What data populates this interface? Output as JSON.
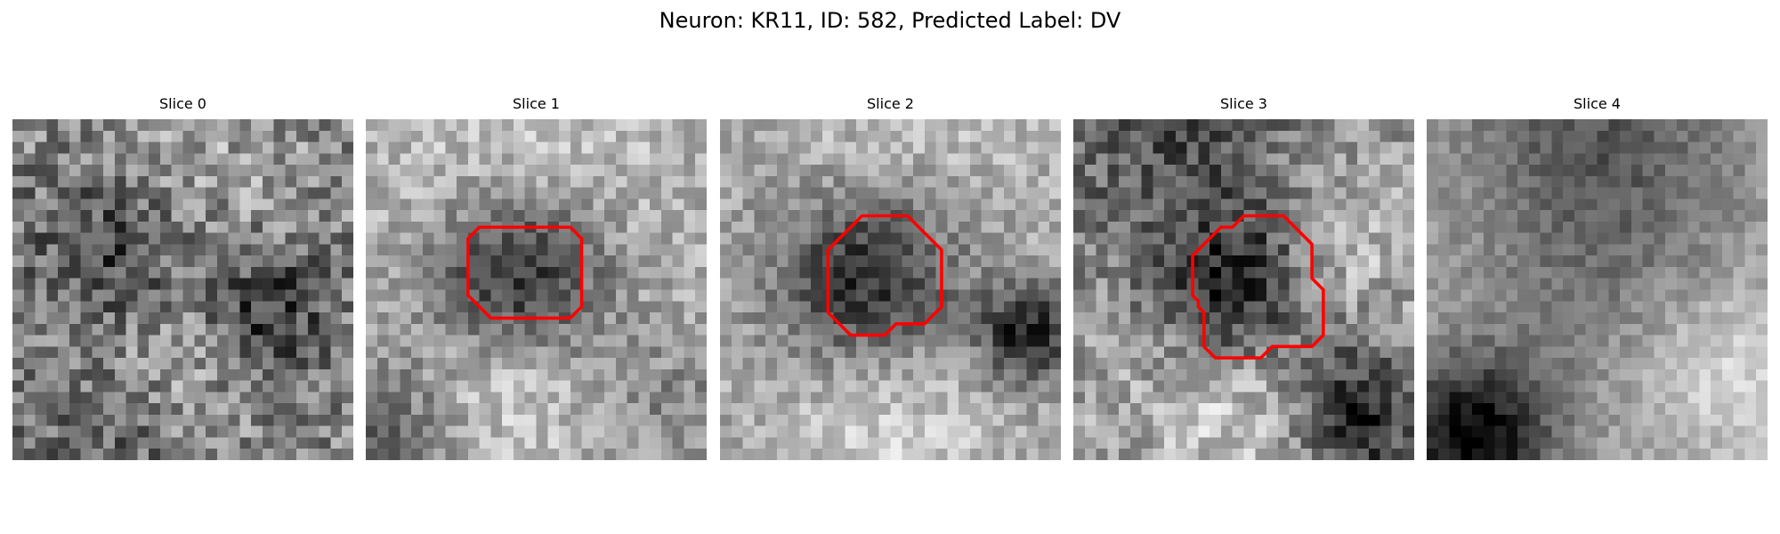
{
  "title": "Neuron: KR11, ID: 582, Predicted Label: DV",
  "contour_color": "#ff0000",
  "panels": [
    {
      "title": "Slice 0",
      "seed": 11,
      "base": 0.52,
      "noise": 0.24,
      "blobs": [
        {
          "cx": 9,
          "cy": 12,
          "r": 5,
          "a": -0.32
        },
        {
          "cx": 22,
          "cy": 17,
          "r": 4,
          "a": -0.38
        },
        {
          "cx": 16,
          "cy": 3,
          "r": 7,
          "a": 0.12
        },
        {
          "cx": 14,
          "cy": 20,
          "r": 6,
          "a": 0.18
        },
        {
          "cx": 8,
          "cy": 27,
          "r": 5,
          "a": -0.18
        }
      ],
      "contour": null
    },
    {
      "title": "Slice 1",
      "seed": 23,
      "base": 0.68,
      "noise": 0.16,
      "blobs": [
        {
          "cx": 13.5,
          "cy": 14,
          "r": 5.5,
          "a": -0.55
        },
        {
          "cx": 14,
          "cy": 5,
          "r": 8,
          "a": 0.12
        },
        {
          "cx": 12,
          "cy": 23,
          "r": 5,
          "a": 0.2
        },
        {
          "cx": 2,
          "cy": 28,
          "r": 5,
          "a": -0.28
        },
        {
          "cx": 27,
          "cy": 25,
          "r": 4,
          "a": -0.15
        }
      ],
      "contour": [
        [
          10,
          9.5
        ],
        [
          18,
          9.5
        ],
        [
          19,
          10.5
        ],
        [
          19,
          16.5
        ],
        [
          18,
          17.5
        ],
        [
          11,
          17.5
        ],
        [
          9,
          15.5
        ],
        [
          9,
          10.5
        ]
      ]
    },
    {
      "title": "Slice 2",
      "seed": 37,
      "base": 0.65,
      "noise": 0.15,
      "blobs": [
        {
          "cx": 13,
          "cy": 14,
          "r": 6,
          "a": -0.58
        },
        {
          "cx": 27,
          "cy": 19,
          "r": 3,
          "a": -0.55
        },
        {
          "cx": 15,
          "cy": 4,
          "r": 8,
          "a": 0.14
        },
        {
          "cx": 14,
          "cy": 25,
          "r": 7,
          "a": 0.2
        }
      ],
      "contour": [
        [
          10.5,
          10.5
        ],
        [
          12.5,
          8.5
        ],
        [
          16.5,
          8.5
        ],
        [
          19.5,
          11.5
        ],
        [
          19.5,
          16.5
        ],
        [
          18,
          18
        ],
        [
          15.5,
          18
        ],
        [
          14.5,
          19
        ],
        [
          11.5,
          19
        ],
        [
          9.5,
          17
        ],
        [
          9.5,
          11.5
        ]
      ]
    },
    {
      "title": "Slice 3",
      "seed": 49,
      "base": 0.62,
      "noise": 0.2,
      "blobs": [
        {
          "cx": 14.5,
          "cy": 15,
          "r": 4.5,
          "a": -0.45
        },
        {
          "cx": 9,
          "cy": 3,
          "r": 8,
          "a": -0.3
        },
        {
          "cx": 25,
          "cy": 26,
          "r": 4,
          "a": -0.55
        },
        {
          "cx": 14,
          "cy": 26,
          "r": 5,
          "a": 0.2
        },
        {
          "cx": 23,
          "cy": 11,
          "r": 4,
          "a": 0.15
        }
      ],
      "contour": [
        [
          10.5,
          12
        ],
        [
          13,
          9.5
        ],
        [
          14,
          9.5
        ],
        [
          15,
          8.5
        ],
        [
          18.5,
          8.5
        ],
        [
          21,
          11
        ],
        [
          21,
          14
        ],
        [
          22,
          15
        ],
        [
          22,
          19
        ],
        [
          21,
          20
        ],
        [
          17.5,
          20
        ],
        [
          16.5,
          21
        ],
        [
          12.5,
          21
        ],
        [
          11.5,
          20
        ],
        [
          11.5,
          17
        ],
        [
          11,
          16.5
        ],
        [
          11,
          16
        ],
        [
          10.5,
          15.5
        ]
      ]
    },
    {
      "title": "Slice 4",
      "seed": 61,
      "base": 0.66,
      "noise": 0.1,
      "blobs": [
        {
          "cx": 4,
          "cy": 28,
          "r": 5,
          "a": -0.65
        },
        {
          "cx": 15,
          "cy": 0,
          "r": 9,
          "a": -0.3
        },
        {
          "cx": 26,
          "cy": 22,
          "r": 5,
          "a": 0.2
        },
        {
          "cx": 15,
          "cy": 14,
          "r": 8,
          "a": -0.12
        }
      ],
      "contour": null
    }
  ]
}
